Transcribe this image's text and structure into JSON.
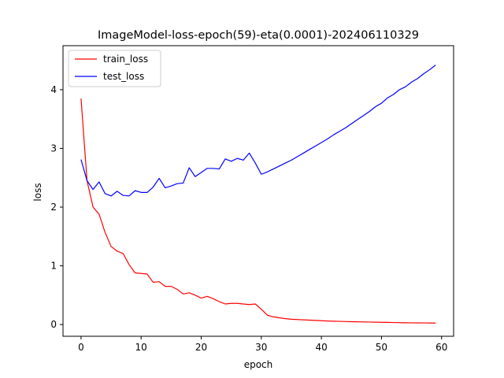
{
  "chart_data": {
    "type": "line",
    "title": "ImageModel-loss-epoch(59)-eta(0.0001)-202406110329",
    "xlabel": "epoch",
    "ylabel": "loss",
    "xlim": [
      -3,
      62
    ],
    "ylim": [
      -0.2,
      4.75
    ],
    "xticks": [
      0,
      10,
      20,
      30,
      40,
      50,
      60
    ],
    "yticks": [
      0,
      1,
      2,
      3,
      4
    ],
    "grid": false,
    "legend_position": "top-left",
    "x": [
      0,
      1,
      2,
      3,
      4,
      5,
      6,
      7,
      8,
      9,
      10,
      11,
      12,
      13,
      14,
      15,
      16,
      17,
      18,
      19,
      20,
      21,
      22,
      23,
      24,
      25,
      26,
      27,
      28,
      29,
      30,
      31,
      32,
      33,
      34,
      35,
      36,
      37,
      38,
      39,
      40,
      41,
      42,
      43,
      44,
      45,
      46,
      47,
      48,
      49,
      50,
      51,
      52,
      53,
      54,
      55,
      56,
      57,
      58,
      59
    ],
    "series": [
      {
        "name": "train_loss",
        "color": "#ff0000",
        "values": [
          3.85,
          2.45,
          2.0,
          1.88,
          1.57,
          1.33,
          1.25,
          1.21,
          1.02,
          0.88,
          0.87,
          0.86,
          0.72,
          0.73,
          0.65,
          0.65,
          0.6,
          0.52,
          0.54,
          0.5,
          0.45,
          0.48,
          0.44,
          0.39,
          0.35,
          0.36,
          0.36,
          0.35,
          0.34,
          0.35,
          0.26,
          0.16,
          0.13,
          0.115,
          0.1,
          0.09,
          0.085,
          0.08,
          0.075,
          0.07,
          0.065,
          0.06,
          0.057,
          0.054,
          0.051,
          0.048,
          0.046,
          0.044,
          0.042,
          0.04,
          0.038,
          0.036,
          0.034,
          0.032,
          0.03,
          0.029,
          0.028,
          0.027,
          0.026,
          0.025
        ]
      },
      {
        "name": "test_loss",
        "color": "#0000ff",
        "values": [
          2.81,
          2.45,
          2.3,
          2.43,
          2.23,
          2.19,
          2.27,
          2.2,
          2.19,
          2.28,
          2.25,
          2.25,
          2.34,
          2.49,
          2.33,
          2.36,
          2.4,
          2.41,
          2.67,
          2.52,
          2.59,
          2.66,
          2.66,
          2.65,
          2.82,
          2.78,
          2.83,
          2.8,
          2.92,
          2.75,
          2.56,
          2.6,
          2.65,
          2.7,
          2.75,
          2.8,
          2.86,
          2.92,
          2.98,
          3.04,
          3.1,
          3.16,
          3.23,
          3.29,
          3.35,
          3.42,
          3.49,
          3.56,
          3.63,
          3.71,
          3.77,
          3.86,
          3.92,
          4.0,
          4.05,
          4.13,
          4.19,
          4.27,
          4.34,
          4.42
        ]
      }
    ]
  }
}
